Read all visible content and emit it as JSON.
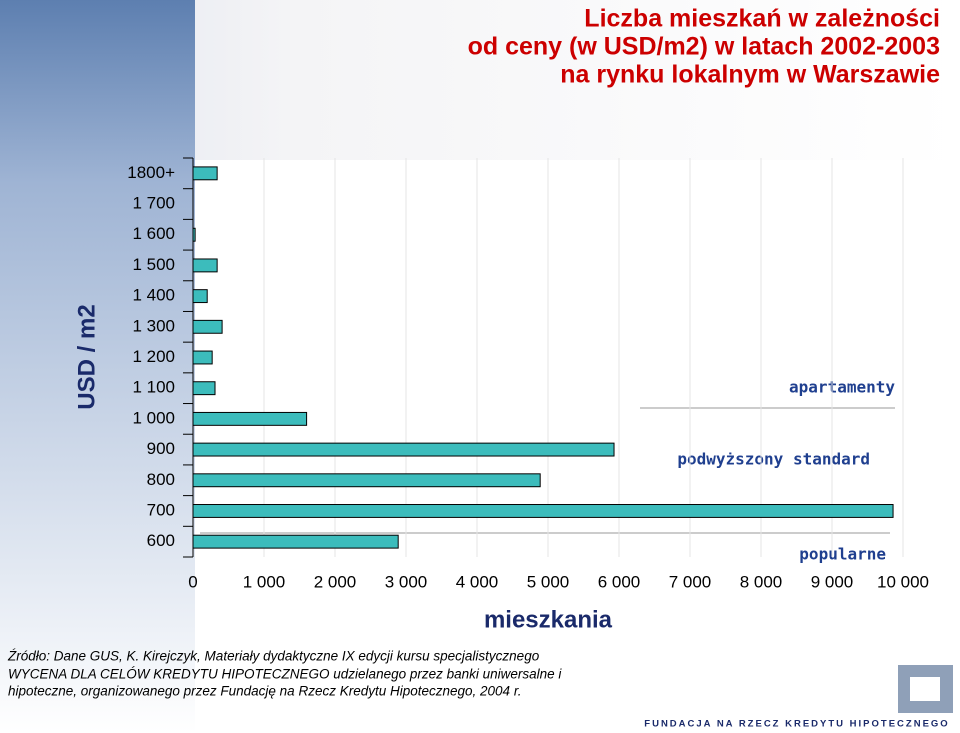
{
  "chart_data": {
    "type": "hbar",
    "title": [
      "Liczba mieszkań w zależności",
      "od ceny (w USD/m2) w latach 2002-2003",
      "na rynku lokalnym w Warszawie"
    ],
    "y_label": "USD / m2",
    "x_label": "mieszkania",
    "categories": [
      "1800+",
      "1 700",
      "1 600",
      "1 500",
      "1 400",
      "1 300",
      "1 200",
      "1 100",
      "1 000",
      "900",
      "800",
      "700",
      "600"
    ],
    "values": [
      340,
      0,
      30,
      340,
      200,
      410,
      270,
      310,
      1600,
      5930,
      4890,
      9860,
      2890
    ],
    "color": "#3cbcbc",
    "xlim": [
      0,
      10000
    ],
    "xticks": [
      0,
      {
        "value": 1000,
        "label": "1 000"
      },
      {
        "value": 2000,
        "label": "2 000"
      },
      {
        "value": 3000,
        "label": "3 000"
      },
      {
        "value": 4000,
        "label": "4 000"
      },
      {
        "value": 5000,
        "label": "5 000"
      },
      {
        "value": 6000,
        "label": "6 000"
      },
      {
        "value": 7000,
        "label": "7 000"
      },
      {
        "value": 8000,
        "label": "8 000"
      },
      {
        "value": 9000,
        "label": "9 000"
      },
      {
        "value": 10000,
        "label": "10 000"
      }
    ],
    "grid": true,
    "annotations": [
      "apartamenty",
      "podwyższony standard",
      "popularne"
    ],
    "source": [
      "Źródło: Dane GUS, K. Kirejczyk, Materiały dydaktyczne IX edycji kursu specjalistycznego",
      "WYCENA DLA CELÓW KREDYTU HIPOTECZNEGO udzielanego przez banki uniwersalne i",
      "hipoteczne, organizowanego przez Fundację na Rzecz Kredytu Hipotecznego,  2004 r."
    ],
    "footer": "FUNDACJA  NA  RZECZ  KREDYTU  HIPOTECZNEGO"
  }
}
